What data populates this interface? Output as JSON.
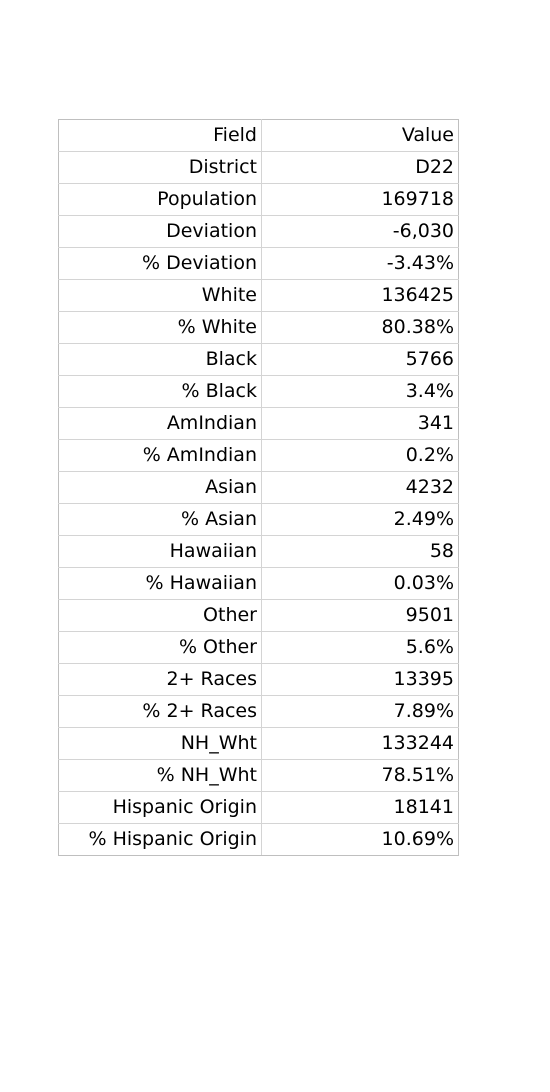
{
  "table": {
    "header": {
      "field": "Field",
      "value": "Value"
    },
    "rows": [
      {
        "field": "District",
        "value": "D22"
      },
      {
        "field": "Population",
        "value": "169718"
      },
      {
        "field": "Deviation",
        "value": "-6,030"
      },
      {
        "field": "% Deviation",
        "value": "-3.43%"
      },
      {
        "field": "White",
        "value": "136425"
      },
      {
        "field": "% White",
        "value": "80.38%"
      },
      {
        "field": "Black",
        "value": "5766"
      },
      {
        "field": "% Black",
        "value": "3.4%"
      },
      {
        "field": "AmIndian",
        "value": "341"
      },
      {
        "field": "% AmIndian",
        "value": "0.2%"
      },
      {
        "field": "Asian",
        "value": "4232"
      },
      {
        "field": "% Asian",
        "value": "2.49%"
      },
      {
        "field": "Hawaiian",
        "value": "58"
      },
      {
        "field": "% Hawaiian",
        "value": "0.03%"
      },
      {
        "field": "Other",
        "value": "9501"
      },
      {
        "field": "% Other",
        "value": "5.6%"
      },
      {
        "field": "2+ Races",
        "value": "13395"
      },
      {
        "field": "% 2+ Races",
        "value": "7.89%"
      },
      {
        "field": "NH_Wht",
        "value": "133244"
      },
      {
        "field": "% NH_Wht",
        "value": "78.51%"
      },
      {
        "field": "Hispanic Origin",
        "value": "18141"
      },
      {
        "field": "% Hispanic Origin",
        "value": "10.69%"
      }
    ]
  }
}
